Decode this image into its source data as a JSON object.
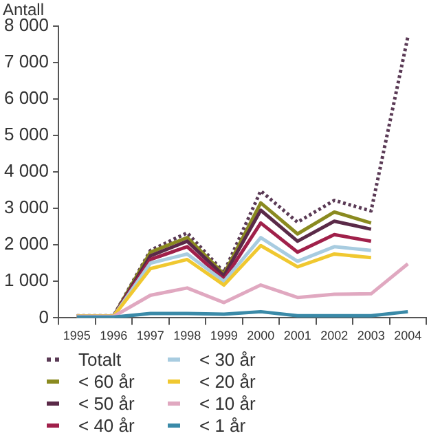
{
  "chart_data": {
    "type": "line",
    "ylabel": "Antall",
    "categories": [
      "1995",
      "1996",
      "1997",
      "1998",
      "1999",
      "2000",
      "2001",
      "2002",
      "2003",
      "2004"
    ],
    "ylim": [
      0,
      8000
    ],
    "yticks": [
      {
        "value": 0,
        "label": "0"
      },
      {
        "value": 1000,
        "label": "1 000"
      },
      {
        "value": 2000,
        "label": "2 000"
      },
      {
        "value": 3000,
        "label": "3 000"
      },
      {
        "value": 4000,
        "label": "4 000"
      },
      {
        "value": 5000,
        "label": "5 000"
      },
      {
        "value": 6000,
        "label": "6 000"
      },
      {
        "value": 7000,
        "label": "7 000"
      },
      {
        "value": 8000,
        "label": "8 000"
      }
    ],
    "grid": false,
    "legend": "bottom",
    "marker": "none",
    "series": [
      {
        "name": "Totalt",
        "color": "#5a3a55",
        "line_style": "dotted",
        "values": [
          60,
          60,
          1850,
          2330,
          1250,
          3480,
          2620,
          3220,
          2930,
          7700
        ]
      },
      {
        "name": "< 60 år",
        "color": "#8a8a20",
        "values": [
          50,
          50,
          1800,
          2200,
          1200,
          3150,
          2300,
          2900,
          2600,
          null
        ]
      },
      {
        "name": "< 50 år",
        "color": "#5a2a48",
        "values": [
          50,
          50,
          1700,
          2100,
          1150,
          2950,
          2100,
          2650,
          2430,
          null
        ]
      },
      {
        "name": "< 40 år",
        "color": "#a0204a",
        "values": [
          50,
          50,
          1600,
          1950,
          1050,
          2600,
          1800,
          2280,
          2100,
          null
        ]
      },
      {
        "name": "< 30 år",
        "color": "#a8cce0",
        "values": [
          50,
          50,
          1500,
          1750,
          1000,
          2200,
          1550,
          1950,
          1850,
          null
        ]
      },
      {
        "name": "< 20 år",
        "color": "#f0c830",
        "values": [
          50,
          50,
          1350,
          1600,
          900,
          1980,
          1400,
          1750,
          1650,
          null
        ]
      },
      {
        "name": "< 10 år",
        "color": "#e0a8c0",
        "values": [
          40,
          40,
          620,
          820,
          420,
          900,
          560,
          650,
          660,
          1480
        ]
      },
      {
        "name": "< 1 år",
        "color": "#3a8aa8",
        "values": [
          20,
          20,
          120,
          120,
          100,
          170,
          60,
          60,
          60,
          170
        ]
      }
    ]
  }
}
